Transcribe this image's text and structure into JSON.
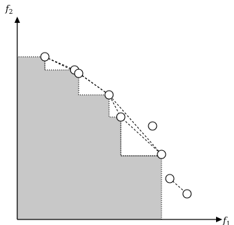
{
  "axes": {
    "x_label": "f",
    "x_label_sub": "1",
    "y_label": "f",
    "y_label_sub": "2"
  },
  "colors": {
    "dominated_region": "#c8c8c8",
    "axis": "#000000",
    "point_fill": "#ffffff",
    "point_stroke": "#000000"
  }
}
